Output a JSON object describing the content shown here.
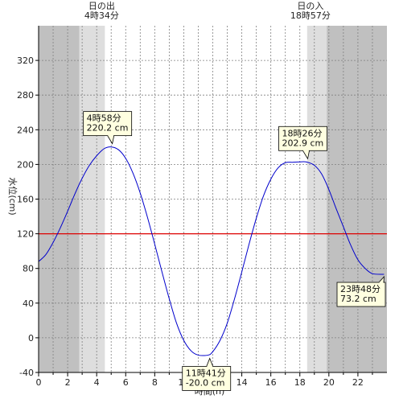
{
  "chart_data": {
    "type": "line",
    "xlabel": "時間(h)",
    "ylabel": "水位(cm)",
    "xlim": [
      0,
      24
    ],
    "ylim": [
      -40,
      360
    ],
    "x_ticks": [
      0,
      2,
      4,
      6,
      8,
      10,
      12,
      14,
      16,
      18,
      20,
      22
    ],
    "y_ticks": [
      -40,
      0,
      40,
      80,
      120,
      160,
      200,
      240,
      280,
      320
    ],
    "grid": true,
    "series": [
      {
        "color": "#0000cc",
        "x": [
          0,
          0.5,
          1,
          1.5,
          2,
          2.5,
          3,
          3.5,
          4,
          4.5,
          4.97,
          5.5,
          6,
          6.5,
          7,
          7.5,
          8,
          8.5,
          9,
          9.5,
          10,
          10.5,
          11,
          11.68,
          12,
          12.5,
          13,
          13.5,
          14,
          14.5,
          15,
          15.5,
          16,
          16.5,
          17,
          17.5,
          18,
          18.43,
          19,
          19.5,
          20,
          20.5,
          21,
          21.5,
          22,
          22.5,
          23,
          23.8
        ],
        "y": [
          88,
          96,
          110,
          127,
          146,
          166,
          184,
          199,
          210,
          218,
          220.2,
          217,
          207,
          190,
          167,
          139,
          108,
          76,
          45,
          17,
          -3,
          -15,
          -20,
          -20.0,
          -16,
          -3,
          17,
          45,
          76,
          108,
          138,
          164,
          183,
          196,
          202,
          202.5,
          202.9,
          202.9,
          199,
          189,
          171,
          149,
          128,
          107,
          90,
          80,
          74,
          73.2
        ]
      }
    ],
    "reference_line": {
      "y": 120,
      "color": "#dd0000"
    },
    "daylight": {
      "sunrise_hour": 4.567,
      "sunset_hour": 18.95,
      "sunrise_label": [
        "日の出",
        "4時34分"
      ],
      "sunset_label": [
        "日の入",
        "18時57分"
      ]
    },
    "annotations": [
      {
        "x": 4.97,
        "y": 220.2,
        "lines": [
          "4時58分",
          "220.2 cm"
        ],
        "side": "above"
      },
      {
        "x": 11.68,
        "y": -20.0,
        "lines": [
          "11時41分",
          "-20.0 cm"
        ],
        "side": "below"
      },
      {
        "x": 18.43,
        "y": 202.9,
        "lines": [
          "18時26分",
          "202.9 cm"
        ],
        "side": "above"
      },
      {
        "x": 23.8,
        "y": 73.2,
        "lines": [
          "23時48分",
          "73.2 cm"
        ],
        "side": "below-left"
      }
    ],
    "colors": {
      "night": "#c0c0c0",
      "twilight": "#dedede",
      "day": "#ffffff",
      "callout_fill": "#ffffe0"
    }
  }
}
